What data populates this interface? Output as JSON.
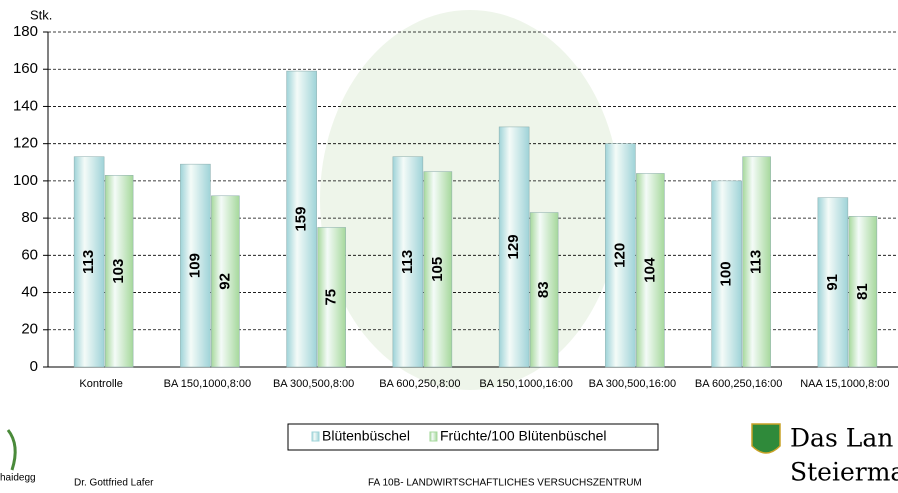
{
  "chart_data": {
    "type": "bar",
    "ylabel": "Stk.",
    "categories": [
      "Kontrolle",
      "BA 150,1000,8:00",
      "BA 300,500,8:00",
      "BA 600,250,8:00",
      "BA 150,1000,16:00",
      "BA 300,500,16:00",
      "BA 600,250,16:00",
      "NAA 15,1000,8:00"
    ],
    "series": [
      {
        "name": "Blütenbüschel",
        "color": "#9fd3d8",
        "values": [
          113,
          109,
          159,
          113,
          129,
          120,
          100,
          91
        ]
      },
      {
        "name": "Früchte/100 Blütenbüschel",
        "color": "#a6d89c",
        "values": [
          103,
          92,
          75,
          105,
          83,
          104,
          113,
          81
        ]
      }
    ],
    "ylim": [
      0,
      180
    ],
    "yticks": [
      0,
      20,
      40,
      60,
      80,
      100,
      120,
      140,
      160,
      180
    ],
    "grid": true,
    "legend": "bottom"
  },
  "footer": {
    "logo": "haidegg",
    "author": "Dr. Gottfried Lafer",
    "institution": "FA 10B- LANDWIRTSCHAFTLICHES VERSUCHSZENTRUM",
    "brand_line1": "Das Lan",
    "brand_line2": "Steierma"
  }
}
